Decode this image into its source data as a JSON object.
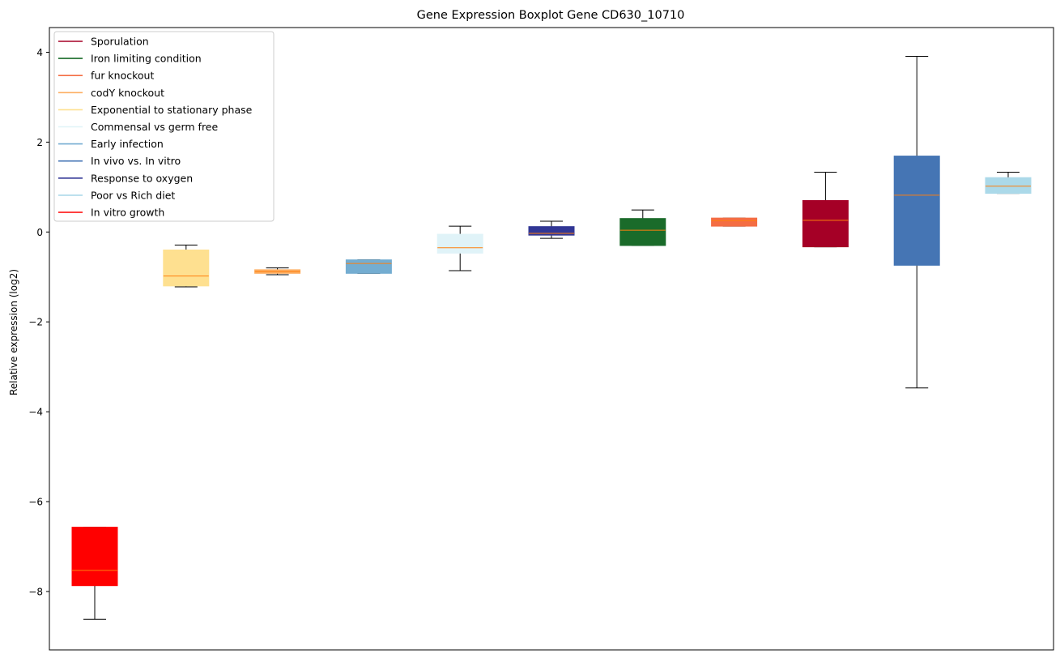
{
  "chart_data": {
    "type": "boxplot",
    "title": "Gene Expression Boxplot Gene CD630_10710",
    "xlabel": "",
    "ylabel": "Relative expression (log2)",
    "ylim": [
      -9.3,
      4.55
    ],
    "yticks": [
      -8,
      -6,
      -4,
      -2,
      0,
      2,
      4
    ],
    "ytick_labels": [
      "−8",
      "−6",
      "−4",
      "−2",
      "0",
      "2",
      "4"
    ],
    "grid": false,
    "legend_position": "top-left",
    "legend": [
      {
        "label": "Sporulation",
        "color": "#a50026"
      },
      {
        "label": "Iron limiting condition",
        "color": "#1a6b2a"
      },
      {
        "label": "fur knockout",
        "color": "#f46d43"
      },
      {
        "label": "codY knockout",
        "color": "#fdae61"
      },
      {
        "label": "Exponential to stationary phase",
        "color": "#fee090"
      },
      {
        "label": "Commensal vs germ free",
        "color": "#e0f3f8"
      },
      {
        "label": "Early infection",
        "color": "#74add1"
      },
      {
        "label": "In vivo vs. In vitro",
        "color": "#4575b4"
      },
      {
        "label": "Response to oxygen",
        "color": "#313695"
      },
      {
        "label": "Poor vs Rich diet",
        "color": "#abd9e9"
      },
      {
        "label": "In vitro growth",
        "color": "#ff0000"
      }
    ],
    "median_color": "#ff7f0e",
    "boxes": [
      {
        "color": "#ff0000",
        "whislo": -8.62,
        "q1": -7.87,
        "med": -7.53,
        "q3": -6.57,
        "whishi": -6.57
      },
      {
        "color": "#fee090",
        "whislo": -1.22,
        "q1": -1.2,
        "med": -0.98,
        "q3": -0.4,
        "whishi": -0.29
      },
      {
        "color": "#fdae61",
        "whislo": -0.95,
        "q1": -0.92,
        "med": -0.88,
        "q3": -0.84,
        "whishi": -0.8
      },
      {
        "color": "#74add1",
        "whislo": -0.92,
        "q1": -0.92,
        "med": -0.7,
        "q3": -0.62,
        "whishi": -0.62
      },
      {
        "color": "#e0f3f8",
        "whislo": -0.86,
        "q1": -0.47,
        "med": -0.35,
        "q3": -0.05,
        "whishi": 0.13
      },
      {
        "color": "#313695",
        "whislo": -0.14,
        "q1": -0.07,
        "med": -0.03,
        "q3": 0.12,
        "whishi": 0.24
      },
      {
        "color": "#1a6b2a",
        "whislo": -0.3,
        "q1": -0.3,
        "med": 0.04,
        "q3": 0.3,
        "whishi": 0.49
      },
      {
        "color": "#f46d43",
        "whislo": 0.13,
        "q1": 0.13,
        "med": 0.25,
        "q3": 0.31,
        "whishi": 0.31
      },
      {
        "color": "#a50026",
        "whislo": -0.33,
        "q1": -0.33,
        "med": 0.26,
        "q3": 0.7,
        "whishi": 1.33
      },
      {
        "color": "#4575b4",
        "whislo": -3.47,
        "q1": -0.74,
        "med": 0.82,
        "q3": 1.69,
        "whishi": 3.91
      },
      {
        "color": "#abd9e9",
        "whislo": 0.86,
        "q1": 0.86,
        "med": 1.02,
        "q3": 1.21,
        "whishi": 1.33
      }
    ]
  }
}
